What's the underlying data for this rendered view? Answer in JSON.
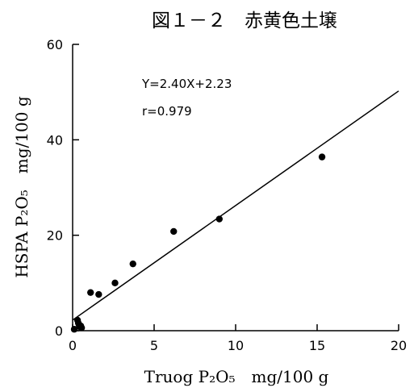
{
  "chart_data": {
    "type": "scatter",
    "title": "図１－２　赤黄色土壌",
    "xlabel": "Truog P₂O₅　mg/100 g",
    "ylabel": "HSPA P₂O₅　mg/100 g",
    "xlim": [
      0,
      20
    ],
    "ylim": [
      0,
      60
    ],
    "xticks": [
      "0",
      "5",
      "10",
      "15",
      "20"
    ],
    "yticks": [
      "0",
      "20",
      "40",
      "60"
    ],
    "grid": false,
    "annotation": [
      "Y=2.40X+2.23",
      "r=0.979"
    ],
    "regression": {
      "slope": 2.4,
      "intercept": 2.23,
      "x_range": [
        0,
        20
      ]
    },
    "points": [
      {
        "x": 0.1,
        "y": 0.3
      },
      {
        "x": 0.3,
        "y": 2.2
      },
      {
        "x": 0.35,
        "y": 1.6
      },
      {
        "x": 0.4,
        "y": 1.2
      },
      {
        "x": 0.45,
        "y": 0.8
      },
      {
        "x": 0.5,
        "y": 1.0
      },
      {
        "x": 0.55,
        "y": 0.6
      },
      {
        "x": 1.1,
        "y": 8.0
      },
      {
        "x": 1.6,
        "y": 7.6
      },
      {
        "x": 2.6,
        "y": 10.0
      },
      {
        "x": 3.7,
        "y": 14.0
      },
      {
        "x": 6.2,
        "y": 20.8
      },
      {
        "x": 9.0,
        "y": 23.4
      },
      {
        "x": 15.3,
        "y": 36.4
      }
    ],
    "colors": {
      "marks": "#000000",
      "background": "#ffffff"
    }
  }
}
